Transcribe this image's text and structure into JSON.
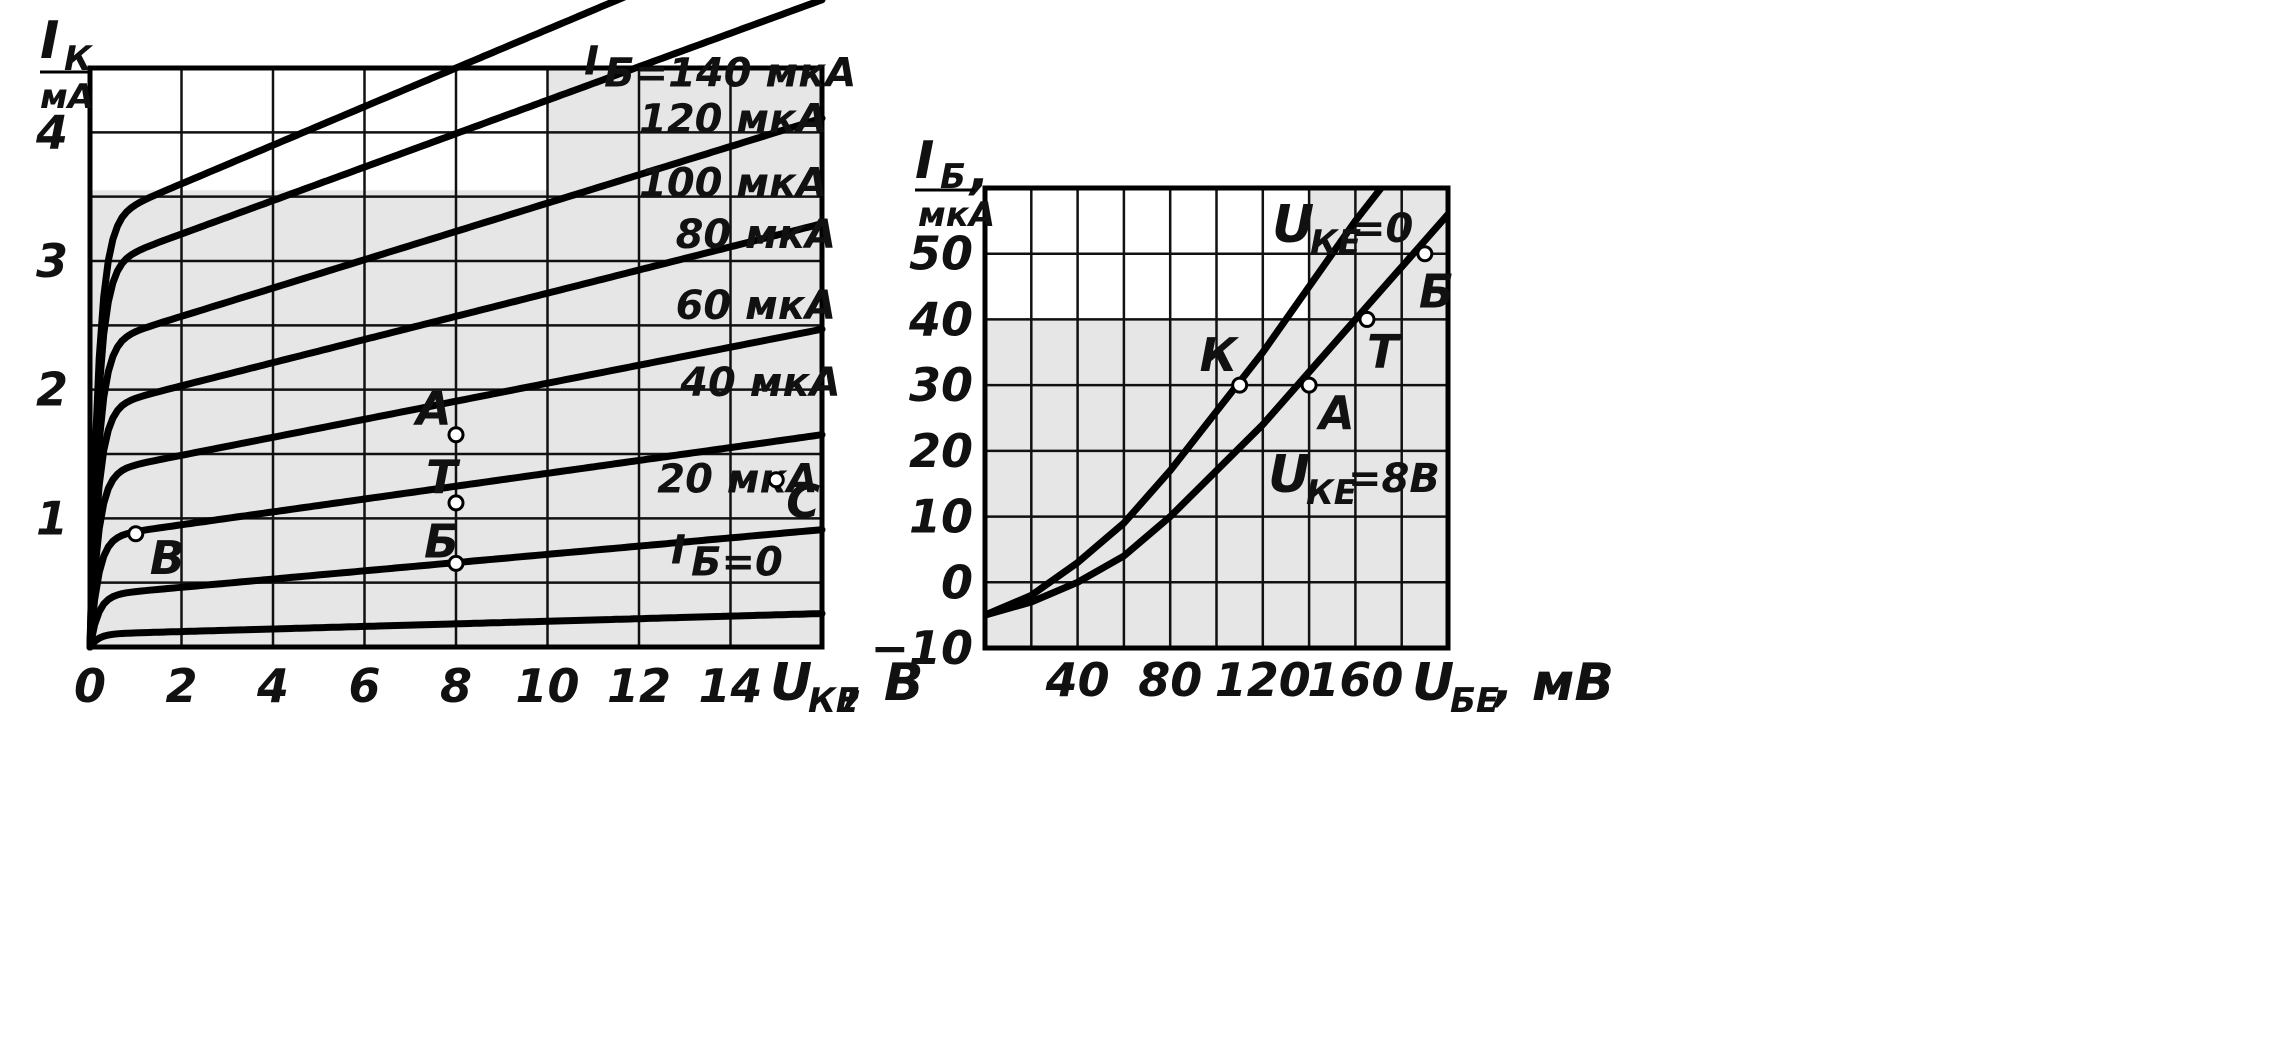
{
  "chart_data": [
    {
      "type": "line",
      "xlabel": "U",
      "xlabel_sub": "КЕ",
      "xunit": ", В",
      "ylabel": "I",
      "ylabel_sub": "К",
      "yunit": "мА",
      "xlim": [
        0,
        16
      ],
      "ylim": [
        0,
        4.5
      ],
      "xticks": [
        "0",
        "2",
        "4",
        "6",
        "8",
        "10",
        "12",
        "14"
      ],
      "yticks": [
        "1",
        "2",
        "3",
        "4"
      ],
      "x_tick_values": [
        0,
        2,
        4,
        6,
        8,
        10,
        12,
        14
      ],
      "y_tick_values": [
        1,
        2,
        3,
        4
      ],
      "grid": true,
      "series": [
        {
          "name": "I_Б=0",
          "label": "Б=0",
          "sat": 0.1,
          "slope": 0.01
        },
        {
          "name": "20 мкА",
          "label": "20 мкА",
          "sat": 0.4,
          "slope": 0.032
        },
        {
          "name": "40 мкА",
          "label": "40 мкА",
          "sat": 0.85,
          "slope": 0.05
        },
        {
          "name": "60 мкА",
          "label": "60 мкА",
          "sat": 1.35,
          "slope": 0.07
        },
        {
          "name": "80 мкА",
          "label": "80 мкА",
          "sat": 1.85,
          "slope": 0.09
        },
        {
          "name": "100 мкА",
          "label": "100 мкА",
          "sat": 2.35,
          "slope": 0.11
        },
        {
          "name": "120 мкА",
          "label": "120 мкА",
          "sat": 2.95,
          "slope": 0.13
        },
        {
          "name": "I_Б=140 мкА",
          "label": "Б=140 мкА",
          "sat": 3.3,
          "slope": 0.15
        }
      ],
      "points": [
        {
          "label": "А",
          "x": 8,
          "y": 1.65
        },
        {
          "label": "Т",
          "x": 8,
          "y": 1.12
        },
        {
          "label": "Б",
          "x": 8,
          "y": 0.65
        },
        {
          "label": "В",
          "x": 1,
          "y": 0.88
        },
        {
          "label": "С",
          "x": 15,
          "y": 1.3
        }
      ]
    },
    {
      "type": "line",
      "xlabel": "U",
      "xlabel_sub": "БЕ",
      "xunit": ", мВ",
      "ylabel": "I",
      "ylabel_sub": "Б",
      "ylabel_suffix": ",",
      "yunit": "мкА",
      "xlim": [
        0,
        200
      ],
      "ylim": [
        -10,
        60
      ],
      "xticks": [
        "40",
        "80",
        "120",
        "160"
      ],
      "x_tick_values": [
        40,
        80,
        120,
        160
      ],
      "yticks": [
        "−10",
        "0",
        "10",
        "20",
        "30",
        "40",
        "50"
      ],
      "y_tick_values": [
        -10,
        0,
        10,
        20,
        30,
        40,
        50
      ],
      "grid": true,
      "series": [
        {
          "name": "U_КЕ=0",
          "label_main": "U",
          "label_sub": "КЕ",
          "label_tail": "=0",
          "x": [
            0,
            20,
            40,
            60,
            80,
            100,
            120,
            140,
            160,
            180
          ],
          "y": [
            -5,
            -2,
            3,
            9,
            17,
            26,
            35,
            45,
            55,
            64
          ]
        },
        {
          "name": "U_КЕ=8В",
          "label_main": "U",
          "label_sub": "КЕ",
          "label_tail": "=8В",
          "x": [
            0,
            20,
            40,
            60,
            80,
            100,
            120,
            140,
            160,
            180,
            200
          ],
          "y": [
            -5,
            -3,
            0,
            4,
            10,
            17,
            24,
            32,
            40,
            48,
            56
          ]
        }
      ],
      "points": [
        {
          "label": "К",
          "x": 110,
          "y": 30
        },
        {
          "label": "А",
          "x": 140,
          "y": 30
        },
        {
          "label": "Т",
          "x": 165,
          "y": 40
        },
        {
          "label": "Б",
          "x": 190,
          "y": 50
        }
      ]
    }
  ]
}
